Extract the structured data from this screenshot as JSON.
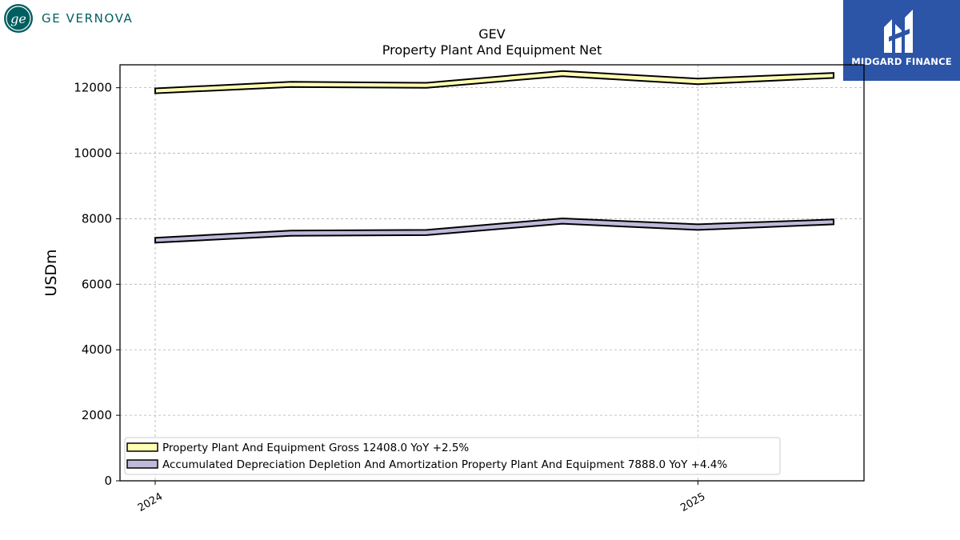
{
  "branding": {
    "company_logo": "ge-vernova-monogram",
    "company_name": "GE VERNOVA",
    "publisher_logo": "midgard-finance-logo",
    "publisher_name": "MIDGARD FINANCE",
    "brand_color": "#005e60",
    "publisher_color": "#2c54a7"
  },
  "chart_data": {
    "type": "line",
    "title": "GEV",
    "subtitle": "Property Plant And Equipment Net",
    "xlabel": "",
    "ylabel": "USDm",
    "x": [
      "2024-01",
      "2024-04",
      "2024-07",
      "2024-10",
      "2025-01",
      "2025-04"
    ],
    "x_tick_labels": [
      "2024",
      "2025"
    ],
    "ylim": [
      0,
      12700
    ],
    "y_ticks": [
      0,
      2000,
      4000,
      6000,
      8000,
      10000,
      12000
    ],
    "grid": true,
    "legend_position": "lower-left",
    "series": [
      {
        "name": "Property Plant And Equipment Gross",
        "legend_label": "Property Plant And Equipment Gross  12408.0 YoY +2.5%",
        "color": "#ffffb3",
        "upper": [
          11980,
          12180,
          12150,
          12510,
          12280,
          12450
        ],
        "lower": [
          11830,
          12020,
          12000,
          12350,
          12110,
          12300
        ]
      },
      {
        "name": "Accumulated Depreciation Depletion And Amortization Property Plant And Equipment",
        "legend_label": "Accumulated Depreciation Depletion And Amortization Property Plant And Equipment  7888.0 YoY +4.4%",
        "color": "#bebada",
        "upper": [
          7420,
          7640,
          7660,
          8010,
          7830,
          7980
        ],
        "lower": [
          7270,
          7480,
          7500,
          7850,
          7660,
          7830
        ]
      }
    ]
  }
}
